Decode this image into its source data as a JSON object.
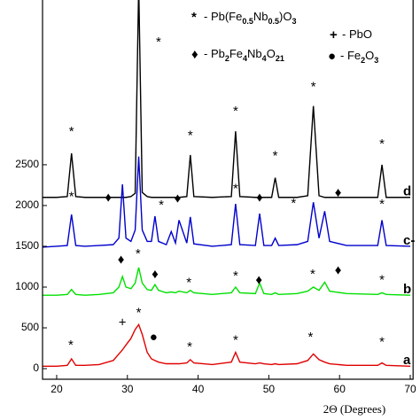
{
  "chart_data": {
    "type": "line",
    "xlabel": "2Θ (Degrees)",
    "xlim": [
      18,
      70.4
    ],
    "xticks": [
      20,
      30,
      40,
      50,
      60,
      70
    ],
    "ylim": [
      -130,
      4520
    ],
    "yticks": [
      0,
      500,
      1000,
      1500,
      2000,
      2500
    ],
    "x": [
      18,
      20,
      21.5,
      22.1,
      22.7,
      24,
      26,
      28,
      28.8,
      29.3,
      29.8,
      30.5,
      31.1,
      31.6,
      32.1,
      32.8,
      33.4,
      33.9,
      34.4,
      35.5,
      36.2,
      36.8,
      37.3,
      38.4,
      38.9,
      39.4,
      42,
      44.7,
      45.3,
      45.9,
      48.1,
      48.7,
      49.3,
      50.4,
      50.9,
      51.4,
      54,
      55.5,
      56.3,
      57.1,
      57.9,
      58.6,
      61,
      65.4,
      66,
      66.6,
      70
    ],
    "series": [
      {
        "name": "d",
        "color": "#000000",
        "values": [
          2100,
          2100,
          2110,
          2640,
          2110,
          2100,
          2100,
          2100,
          2100,
          2100,
          2100,
          2110,
          2150,
          4700,
          2160,
          2110,
          2100,
          2100,
          2100,
          2100,
          2100,
          2100,
          2100,
          2110,
          2620,
          2110,
          2100,
          2110,
          2910,
          2110,
          2100,
          2100,
          2100,
          2100,
          2340,
          2100,
          2100,
          2120,
          3220,
          2120,
          2100,
          2100,
          2100,
          2100,
          2500,
          2100,
          2100
        ]
      },
      {
        "name": "c-",
        "color": "#0000cc",
        "values": [
          1490,
          1500,
          1510,
          1890,
          1510,
          1500,
          1510,
          1520,
          1600,
          2260,
          1600,
          1560,
          1700,
          2600,
          1700,
          1560,
          1560,
          1870,
          1560,
          1520,
          1680,
          1540,
          1820,
          1540,
          1860,
          1530,
          1500,
          1520,
          2020,
          1520,
          1510,
          1900,
          1510,
          1510,
          1600,
          1510,
          1520,
          1560,
          2040,
          1600,
          1930,
          1560,
          1510,
          1510,
          1820,
          1510,
          1500
        ]
      },
      {
        "name": "b",
        "color": "#00e000",
        "values": [
          900,
          900,
          910,
          970,
          910,
          900,
          910,
          930,
          1000,
          1130,
          1000,
          980,
          1050,
          1240,
          1050,
          970,
          960,
          1030,
          960,
          930,
          940,
          930,
          950,
          930,
          960,
          930,
          910,
          930,
          1000,
          930,
          920,
          1050,
          920,
          910,
          930,
          910,
          920,
          950,
          1000,
          960,
          1060,
          950,
          920,
          910,
          930,
          910,
          900
        ]
      },
      {
        "name": "a",
        "color": "#e00000",
        "values": [
          30,
          30,
          40,
          120,
          40,
          40,
          50,
          100,
          180,
          230,
          290,
          370,
          480,
          540,
          420,
          200,
          120,
          100,
          80,
          60,
          60,
          60,
          60,
          70,
          110,
          70,
          50,
          80,
          200,
          80,
          60,
          70,
          60,
          50,
          60,
          50,
          60,
          100,
          180,
          110,
          80,
          60,
          40,
          40,
          70,
          40,
          30
        ]
      }
    ],
    "legend": [
      {
        "symbol": "*",
        "text": [
          "- Pb(Fe",
          "0.5",
          "Nb",
          "0.5",
          ")O",
          "3"
        ]
      },
      {
        "symbol": "+",
        "text": [
          "- PbO"
        ]
      },
      {
        "symbol": "♦",
        "text": [
          "- Pb",
          "2",
          "Fe",
          "4",
          "Nb",
          "4",
          "O",
          "21"
        ]
      },
      {
        "symbol": "●",
        "text": [
          "- Fe",
          "2",
          "O",
          "3"
        ]
      }
    ],
    "markers": [
      {
        "symbol": "*",
        "x": 22.1,
        "y": 2900
      },
      {
        "symbol": "*",
        "x": 34.4,
        "y": 4000
      },
      {
        "symbol": "*",
        "x": 38.9,
        "y": 2850
      },
      {
        "symbol": "*",
        "x": 45.3,
        "y": 3150
      },
      {
        "symbol": "*",
        "x": 50.9,
        "y": 2600
      },
      {
        "symbol": "*",
        "x": 56.3,
        "y": 3450
      },
      {
        "symbol": "*",
        "x": 66,
        "y": 2750
      },
      {
        "symbol": "*",
        "x": 22.1,
        "y": 2100
      },
      {
        "symbol": "♦",
        "x": 27.3,
        "y": 2090
      },
      {
        "symbol": "*",
        "x": 34.8,
        "y": 2000
      },
      {
        "symbol": "♦",
        "x": 37.1,
        "y": 2080
      },
      {
        "symbol": "*",
        "x": 45.3,
        "y": 2200
      },
      {
        "symbol": "♦",
        "x": 48.7,
        "y": 2090
      },
      {
        "symbol": "*",
        "x": 53.5,
        "y": 2020
      },
      {
        "symbol": "♦",
        "x": 59.8,
        "y": 2150
      },
      {
        "symbol": "*",
        "x": 66,
        "y": 2010
      },
      {
        "symbol": "♦",
        "x": 29.1,
        "y": 1330
      },
      {
        "symbol": "*",
        "x": 31.5,
        "y": 1400
      },
      {
        "symbol": "♦",
        "x": 33.9,
        "y": 1150
      },
      {
        "symbol": "*",
        "x": 38.7,
        "y": 1050
      },
      {
        "symbol": "*",
        "x": 45.3,
        "y": 1130
      },
      {
        "symbol": "♦",
        "x": 48.6,
        "y": 1080
      },
      {
        "symbol": "*",
        "x": 56.2,
        "y": 1150
      },
      {
        "symbol": "♦",
        "x": 59.8,
        "y": 1200
      },
      {
        "symbol": "*",
        "x": 66,
        "y": 1080
      },
      {
        "symbol": "*",
        "x": 22,
        "y": 280
      },
      {
        "symbol": "+",
        "x": 29.3,
        "y": 560
      },
      {
        "symbol": "*",
        "x": 31.6,
        "y": 680
      },
      {
        "symbol": "●",
        "x": 33.7,
        "y": 380
      },
      {
        "symbol": "*",
        "x": 38.8,
        "y": 260
      },
      {
        "symbol": "*",
        "x": 45.3,
        "y": 340
      },
      {
        "symbol": "*",
        "x": 55.9,
        "y": 380
      },
      {
        "symbol": "*",
        "x": 66,
        "y": 320
      }
    ]
  }
}
